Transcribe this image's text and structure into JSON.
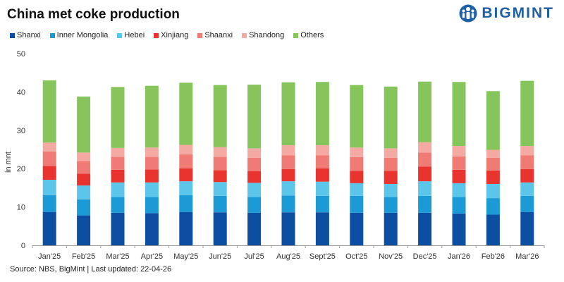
{
  "title": "China met coke production",
  "brand": {
    "name": "BIGMINT",
    "color": "#1f5fa6"
  },
  "source": "Source: NBS, BigMint | Last updated: 22-04-26",
  "chart_data": {
    "type": "bar",
    "stacked": true,
    "ylabel": "in mnt",
    "ylim": [
      0,
      50
    ],
    "yticks": [
      0,
      10,
      20,
      30,
      40,
      50
    ],
    "grid": false,
    "legend_position": "top-left",
    "categories": [
      "Jan'25",
      "Feb'25",
      "Mar'25",
      "Apr'25",
      "May'25",
      "Jun'25",
      "Jul'25",
      "Aug'25",
      "Sept'25",
      "Oct'25",
      "Nov'25",
      "Dec'25",
      "Jan'26",
      "Feb'26",
      "Mar'26"
    ],
    "series": [
      {
        "name": "Shanxi",
        "color": "#0b4ea2",
        "values": [
          8.7,
          7.8,
          8.5,
          8.4,
          8.7,
          8.6,
          8.5,
          8.6,
          8.6,
          8.5,
          8.5,
          8.5,
          8.3,
          8.0,
          8.7
        ]
      },
      {
        "name": "Inner Mongolia",
        "color": "#1b9ad6",
        "values": [
          4.4,
          4.2,
          4.1,
          4.2,
          4.4,
          4.3,
          4.1,
          4.4,
          4.3,
          4.4,
          4.1,
          4.4,
          4.3,
          4.3,
          4.2
        ]
      },
      {
        "name": "Hebei",
        "color": "#5bc6ea",
        "values": [
          4.0,
          3.6,
          3.8,
          3.8,
          3.6,
          3.6,
          3.7,
          3.7,
          3.7,
          3.3,
          3.4,
          3.8,
          3.6,
          3.7,
          3.5
        ]
      },
      {
        "name": "Xinjiang",
        "color": "#e8332f",
        "values": [
          3.6,
          3.1,
          3.3,
          3.4,
          3.4,
          3.1,
          3.0,
          3.2,
          3.5,
          3.2,
          3.4,
          3.8,
          3.5,
          3.5,
          3.5
        ]
      },
      {
        "name": "Shaanxi",
        "color": "#ef7b74",
        "values": [
          3.8,
          3.3,
          3.4,
          3.3,
          3.6,
          3.5,
          3.5,
          3.6,
          3.4,
          3.6,
          3.4,
          3.7,
          3.5,
          3.3,
          3.6
        ]
      },
      {
        "name": "Shandong",
        "color": "#f4a9a3",
        "values": [
          2.3,
          2.2,
          2.3,
          2.4,
          2.5,
          2.5,
          2.5,
          2.6,
          2.6,
          2.5,
          2.5,
          2.7,
          2.7,
          2.1,
          2.4
        ]
      },
      {
        "name": "Others",
        "color": "#86c45c",
        "values": [
          16.2,
          14.6,
          15.9,
          16.1,
          16.2,
          16.2,
          16.6,
          16.4,
          16.5,
          16.3,
          16.1,
          15.8,
          16.7,
          15.3,
          17.0
        ]
      }
    ]
  }
}
